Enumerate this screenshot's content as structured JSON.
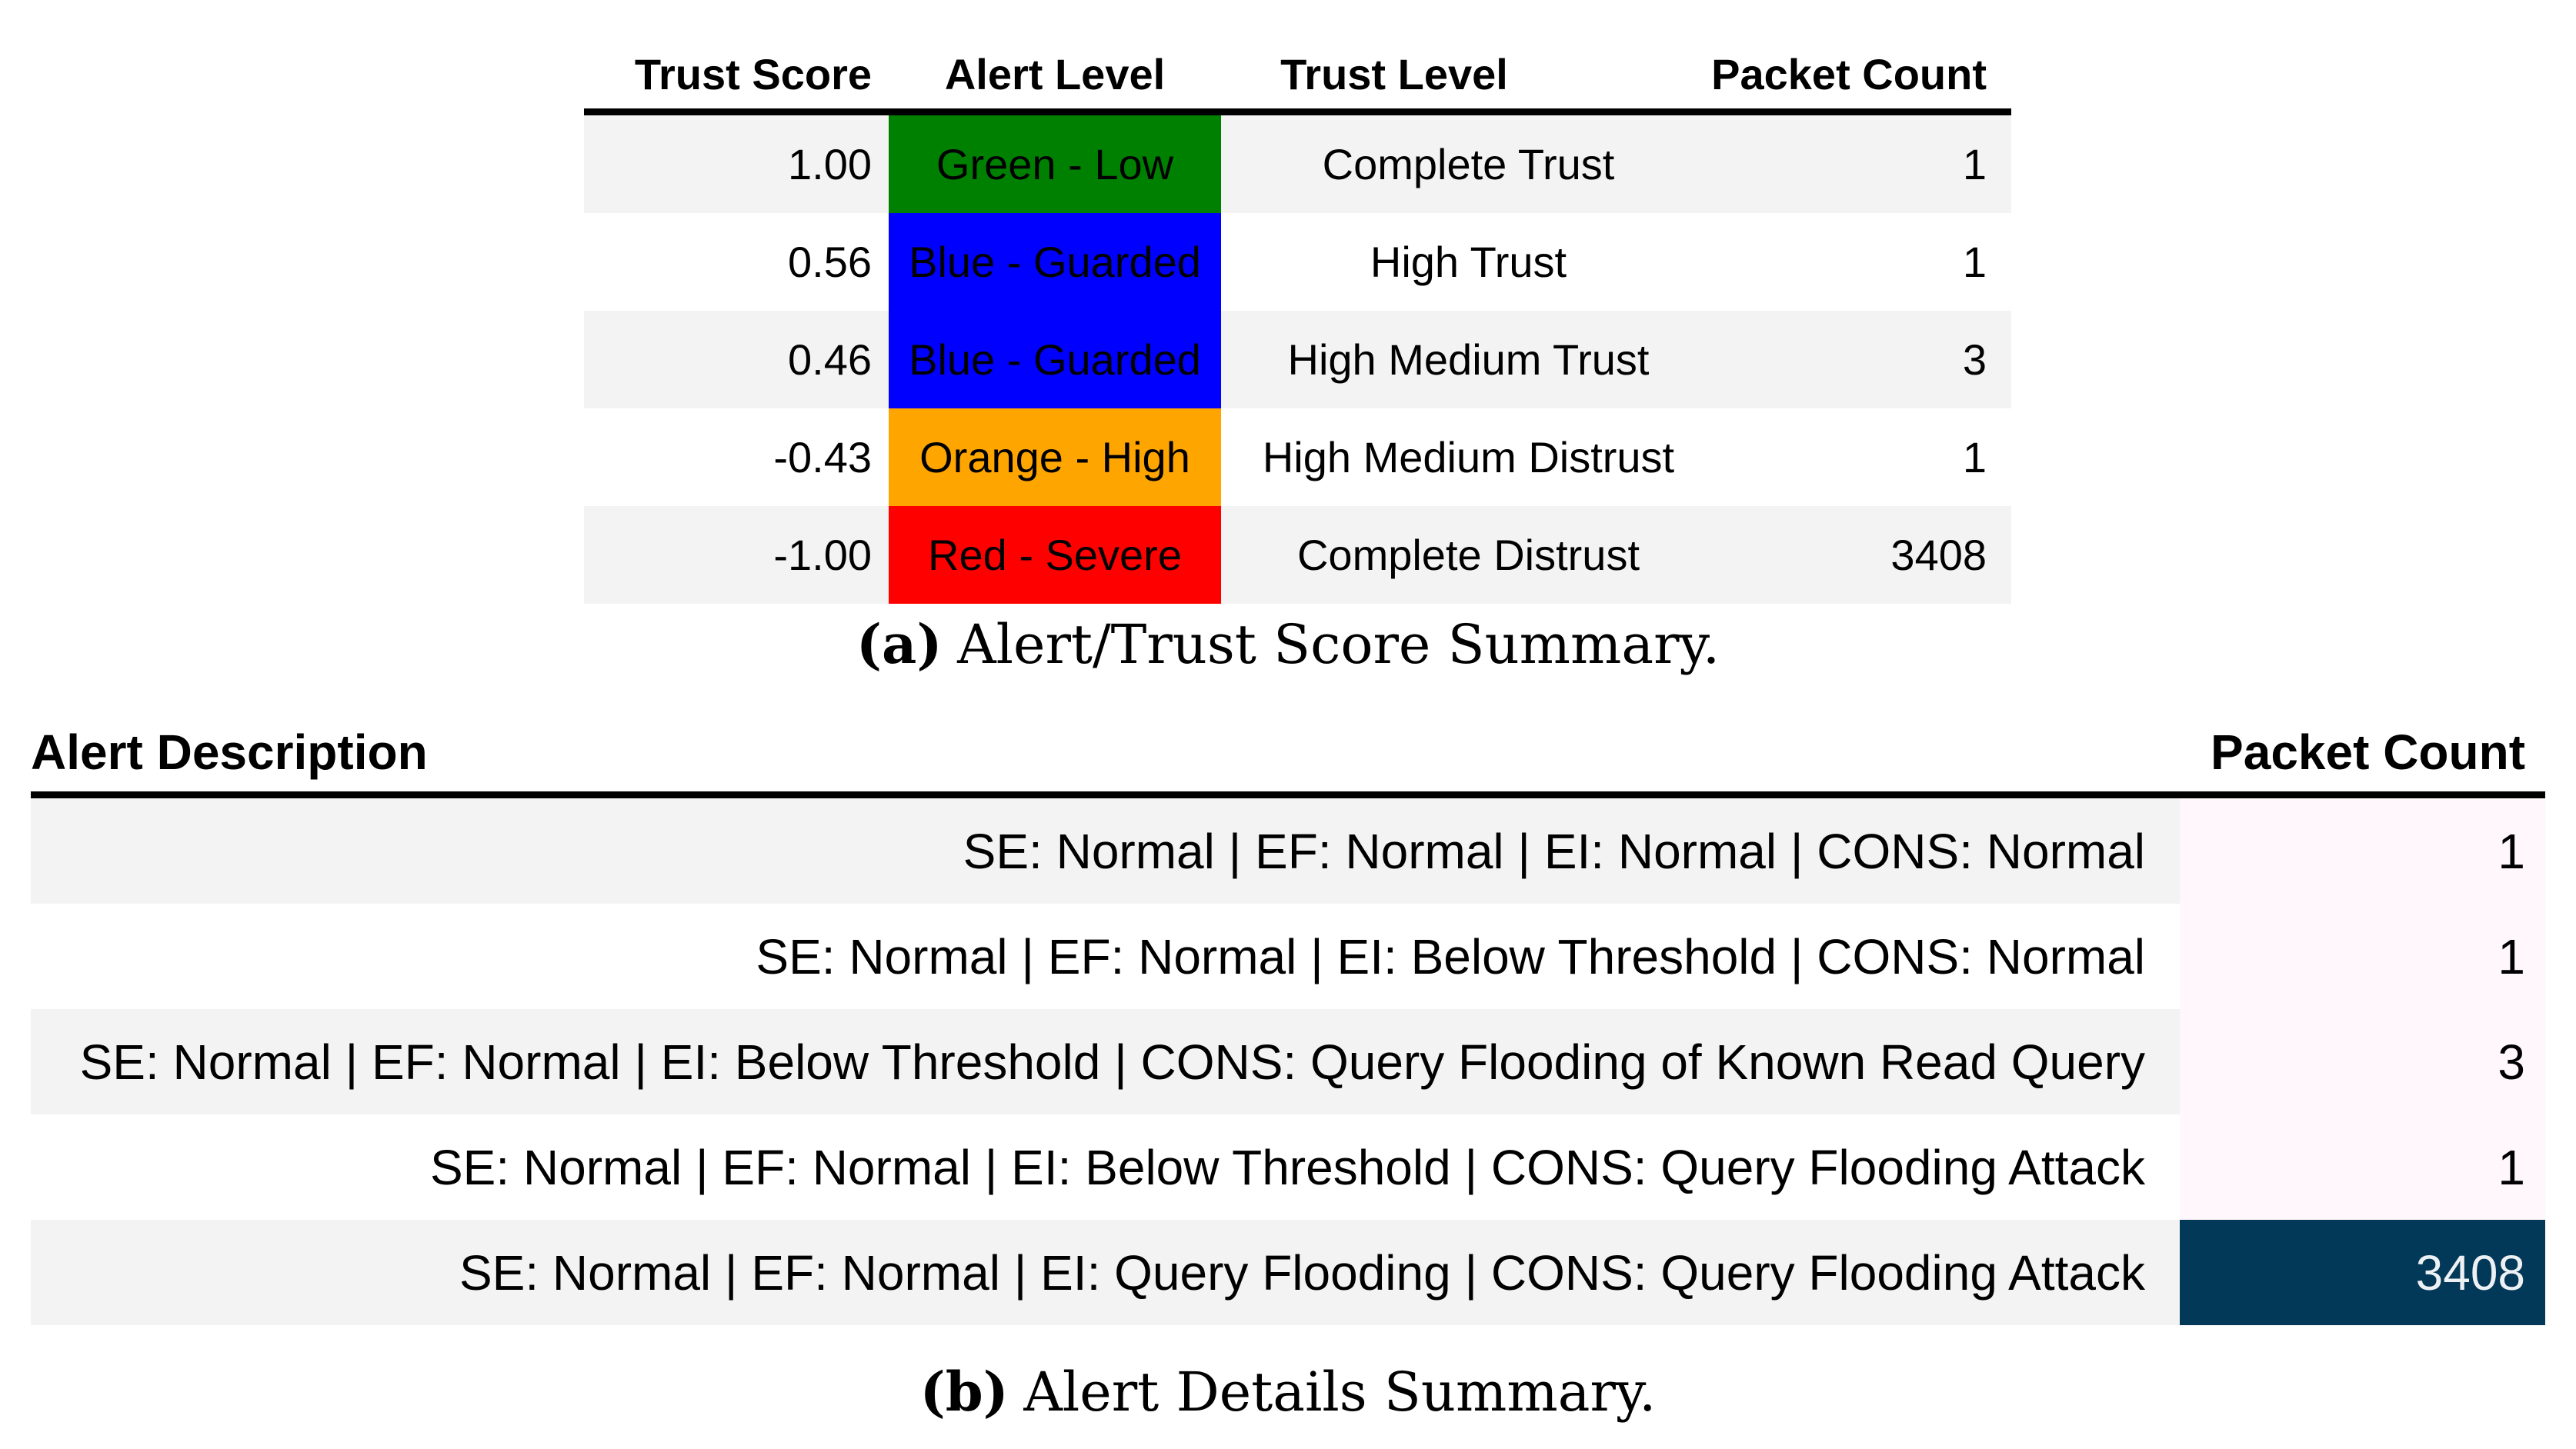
{
  "page": {
    "background": "#ffffff",
    "rule_color": "#000000",
    "stripe_color": "#f3f3f3"
  },
  "figure_a": {
    "caption": {
      "label": "(a)",
      "text": "Alert/Trust Score Summary."
    },
    "table": {
      "headers": [
        "Trust Score",
        "Alert Level",
        "Trust Level",
        "Packet Count"
      ],
      "rows": [
        {
          "trust_score": "1.00",
          "alert_level": "Green - Low",
          "alert_color": "#008000",
          "trust_level": "Complete Trust",
          "packet_count": "1"
        },
        {
          "trust_score": "0.56",
          "alert_level": "Blue - Guarded",
          "alert_color": "#0000ff",
          "trust_level": "High Trust",
          "packet_count": "1"
        },
        {
          "trust_score": "0.46",
          "alert_level": "Blue - Guarded",
          "alert_color": "#0000ff",
          "trust_level": "High Medium Trust",
          "packet_count": "3"
        },
        {
          "trust_score": "-0.43",
          "alert_level": "Orange - High",
          "alert_color": "#ffa500",
          "trust_level": "High Medium Distrust",
          "packet_count": "1"
        },
        {
          "trust_score": "-1.00",
          "alert_level": "Red - Severe",
          "alert_color": "#ff0000",
          "trust_level": "Complete Distrust",
          "packet_count": "3408"
        }
      ]
    }
  },
  "figure_b": {
    "caption": {
      "label": "(b)",
      "text": "Alert Details Summary."
    },
    "table": {
      "headers": [
        "Alert Description",
        "Packet Count"
      ],
      "rows": [
        {
          "description": "SE: Normal | EF: Normal | EI: Normal | CONS: Normal",
          "packet_count": "1",
          "count_bg": "#fff7fb",
          "count_text": "#000000"
        },
        {
          "description": "SE: Normal | EF: Normal | EI: Below Threshold | CONS: Normal",
          "packet_count": "1",
          "count_bg": "#fff7fb",
          "count_text": "#000000"
        },
        {
          "description": "SE: Normal | EF: Normal | EI: Below Threshold | CONS: Query Flooding of Known Read Query",
          "packet_count": "3",
          "count_bg": "#fff7fb",
          "count_text": "#000000"
        },
        {
          "description": "SE: Normal | EF: Normal | EI: Below Threshold | CONS: Query Flooding Attack",
          "packet_count": "1",
          "count_bg": "#fff7fb",
          "count_text": "#000000"
        },
        {
          "description": "SE: Normal | EF: Normal | EI: Query Flooding | CONS: Query Flooding Attack",
          "packet_count": "3408",
          "count_bg": "#023858",
          "count_text": "#eef1f4"
        }
      ]
    }
  }
}
